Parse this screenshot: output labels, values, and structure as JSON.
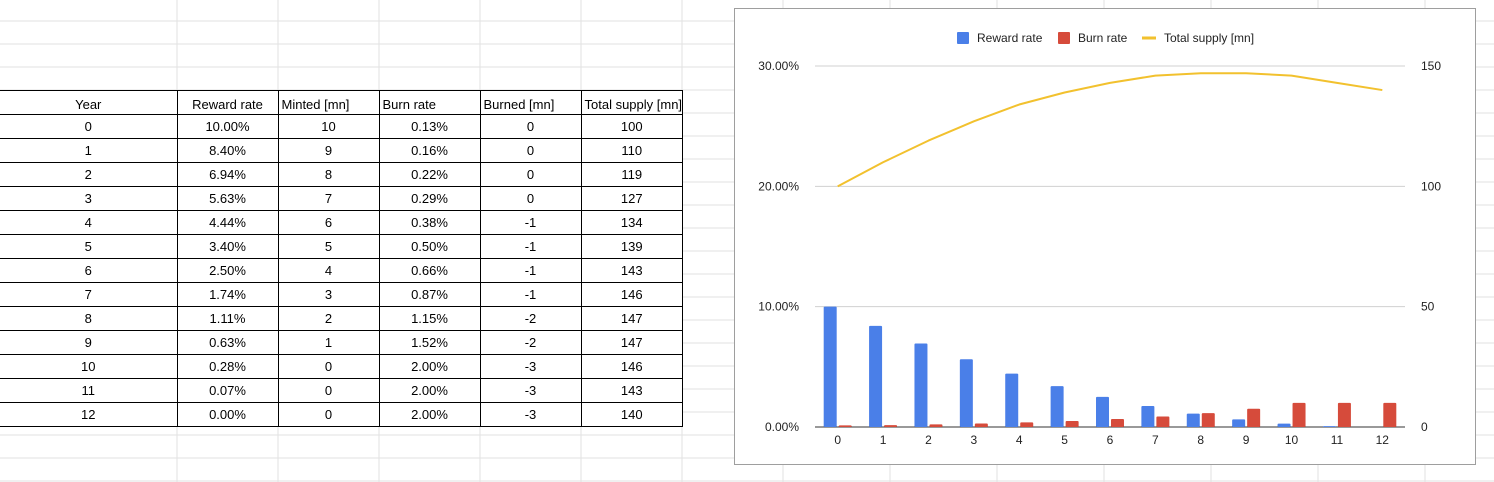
{
  "table": {
    "headers": [
      "Year",
      "Reward rate",
      "Minted [mn]",
      "Burn rate",
      "Burned [mn]",
      "Total supply [mn]"
    ],
    "rows": [
      [
        "0",
        "10.00%",
        "10",
        "0.13%",
        "0",
        "100"
      ],
      [
        "1",
        "8.40%",
        "9",
        "0.16%",
        "0",
        "110"
      ],
      [
        "2",
        "6.94%",
        "8",
        "0.22%",
        "0",
        "119"
      ],
      [
        "3",
        "5.63%",
        "7",
        "0.29%",
        "0",
        "127"
      ],
      [
        "4",
        "4.44%",
        "6",
        "0.38%",
        "-1",
        "134"
      ],
      [
        "5",
        "3.40%",
        "5",
        "0.50%",
        "-1",
        "139"
      ],
      [
        "6",
        "2.50%",
        "4",
        "0.66%",
        "-1",
        "143"
      ],
      [
        "7",
        "1.74%",
        "3",
        "0.87%",
        "-1",
        "146"
      ],
      [
        "8",
        "1.11%",
        "2",
        "1.15%",
        "-2",
        "147"
      ],
      [
        "9",
        "0.63%",
        "1",
        "1.52%",
        "-2",
        "147"
      ],
      [
        "10",
        "0.28%",
        "0",
        "2.00%",
        "-3",
        "146"
      ],
      [
        "11",
        "0.07%",
        "0",
        "2.00%",
        "-3",
        "143"
      ],
      [
        "12",
        "0.00%",
        "0",
        "2.00%",
        "-3",
        "140"
      ]
    ]
  },
  "chart_data": {
    "type": "bar",
    "categories": [
      "0",
      "1",
      "2",
      "3",
      "4",
      "5",
      "6",
      "7",
      "8",
      "9",
      "10",
      "11",
      "12"
    ],
    "series": [
      {
        "name": "Reward rate",
        "type": "bar",
        "axis": "left",
        "color": "#4a7fe8",
        "values": [
          10.0,
          8.4,
          6.94,
          5.63,
          4.44,
          3.4,
          2.5,
          1.74,
          1.11,
          0.63,
          0.28,
          0.07,
          0.0
        ]
      },
      {
        "name": "Burn rate",
        "type": "bar",
        "axis": "left",
        "color": "#d64b3b",
        "values": [
          0.13,
          0.16,
          0.22,
          0.29,
          0.38,
          0.5,
          0.66,
          0.87,
          1.15,
          1.52,
          2.0,
          2.0,
          2.0
        ]
      },
      {
        "name": "Total supply [mn]",
        "type": "line",
        "axis": "right",
        "color": "#f2c12e",
        "values": [
          100,
          110,
          119,
          127,
          134,
          139,
          143,
          146,
          147,
          147,
          146,
          143,
          140
        ]
      }
    ],
    "left_axis": {
      "min": 0,
      "max": 30,
      "ticks": [
        0,
        10,
        20,
        30
      ],
      "tick_labels": [
        "0.00%",
        "10.00%",
        "20.00%",
        "30.00%"
      ]
    },
    "right_axis": {
      "min": 0,
      "max": 150,
      "ticks": [
        0,
        50,
        100,
        150
      ],
      "tick_labels": [
        "0",
        "50",
        "100",
        "150"
      ]
    },
    "grid": true,
    "legend_position": "top"
  }
}
